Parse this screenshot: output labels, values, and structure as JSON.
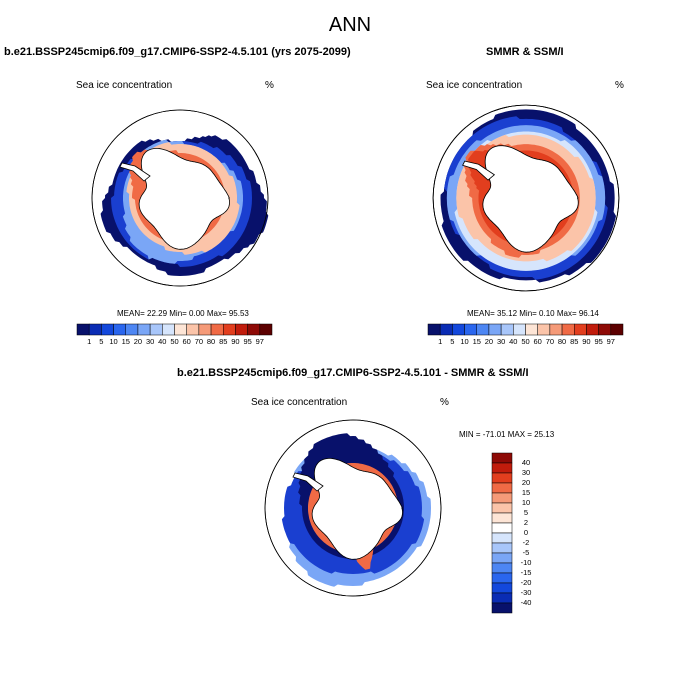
{
  "figure": {
    "title": "ANN"
  },
  "panels": [
    {
      "title": "b.e21.BSSP245cmip6.f09_g17.CMIP6-SSP2-4.5.101 (yrs 2075-2099)",
      "variable": "Sea ice concentration",
      "units": "%",
      "stats": "MEAN=  22.29  Min=   0.00  Max=   95.53"
    },
    {
      "title": "SMMR & SSM/I",
      "variable": "Sea ice concentration",
      "units": "%",
      "stats": "MEAN=  35.12  Min=   0.10  Max=   96.14"
    },
    {
      "title": "b.e21.BSSP245cmip6.f09_g17.CMIP6-SSP2-4.5.101 - SMMR & SSM/I",
      "variable": "Sea ice concentration",
      "units": "%",
      "stats": "MIN = -71.01  MAX =  25.13"
    }
  ],
  "colorbar_abs": {
    "labels": [
      "1",
      "5",
      "10",
      "15",
      "20",
      "30",
      "40",
      "50",
      "60",
      "70",
      "80",
      "85",
      "90",
      "95",
      "97"
    ],
    "colors": [
      "#08116b",
      "#0a2cb4",
      "#1348dc",
      "#2a66ee",
      "#4d86f3",
      "#7aa6f6",
      "#a8c6fa",
      "#d6e5fc",
      "#fde5d6",
      "#fbc4a9",
      "#f59a78",
      "#f06a45",
      "#e23e1e",
      "#c11c0c",
      "#8e0a06",
      "#5c0000"
    ]
  },
  "colorbar_diff": {
    "labels": [
      "40",
      "30",
      "20",
      "15",
      "10",
      "5",
      "2",
      "0",
      "-2",
      "-5",
      "-10",
      "-15",
      "-20",
      "-30",
      "-40"
    ],
    "colors": [
      "#8e0a06",
      "#c11c0c",
      "#e23e1e",
      "#f06a45",
      "#f59a78",
      "#fbc4a9",
      "#fde5d6",
      "#ffffff",
      "#d6e5fc",
      "#a8c6fa",
      "#7aa6f6",
      "#4d86f3",
      "#2a66ee",
      "#1348dc",
      "#0a2cb4",
      "#08116b"
    ]
  },
  "map_colors": {
    "ocean": "#ffffff",
    "land": "#ffffff",
    "coast": "#000000",
    "ice_edge": "#08116b",
    "ice_mid": "#1a3fd0",
    "ice_light": "#7aa6f6",
    "ice_pale": "#d6e5fc",
    "ice_pink": "#fbc4a9",
    "ice_red": "#f06a45",
    "ice_dark_red": "#e23e1e"
  }
}
